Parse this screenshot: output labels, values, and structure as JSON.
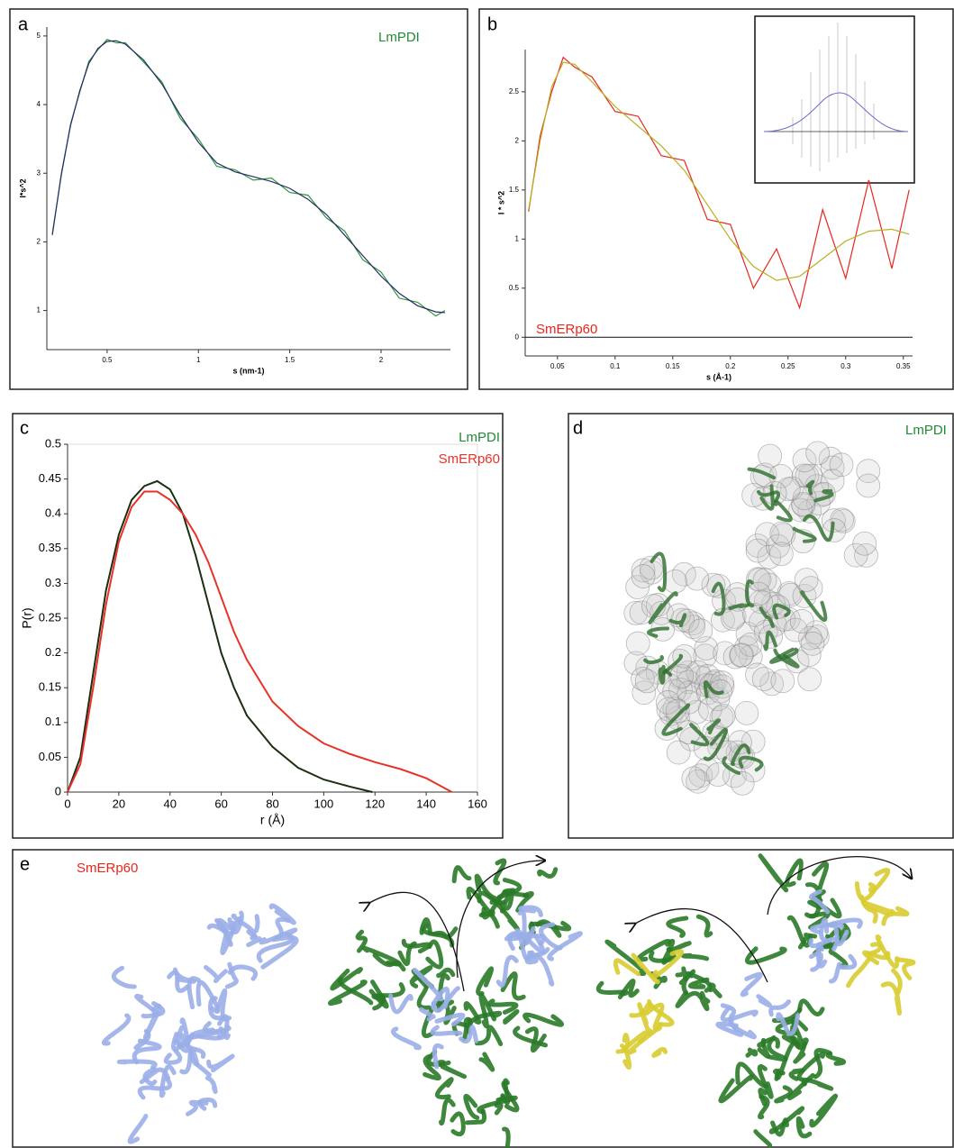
{
  "chart_data": [
    {
      "type": "line",
      "panel": "a",
      "xlabel": "s (nm-1)",
      "ylabel": "I*s^2",
      "annotation": {
        "text": "LmPDI",
        "color": "#238a35"
      },
      "x": [
        0.2,
        0.25,
        0.3,
        0.35,
        0.4,
        0.45,
        0.5,
        0.55,
        0.6,
        0.7,
        0.8,
        0.9,
        1.0,
        1.1,
        1.2,
        1.3,
        1.4,
        1.5,
        1.6,
        1.7,
        1.8,
        1.9,
        2.0,
        2.1,
        2.2,
        2.3,
        2.35
      ],
      "series": [
        {
          "color": "#2a9a3a",
          "values": [
            2.12,
            2.98,
            3.72,
            4.18,
            4.63,
            4.8,
            4.95,
            4.9,
            4.9,
            4.62,
            4.33,
            3.8,
            3.5,
            3.1,
            3.05,
            2.9,
            2.93,
            2.72,
            2.68,
            2.35,
            2.16,
            1.74,
            1.56,
            1.18,
            1.12,
            0.92,
            1.0
          ]
        },
        {
          "color": "#2a2a6a",
          "values": [
            2.1,
            3.0,
            3.7,
            4.2,
            4.6,
            4.82,
            4.92,
            4.93,
            4.88,
            4.65,
            4.3,
            3.85,
            3.45,
            3.15,
            3.02,
            2.95,
            2.88,
            2.78,
            2.62,
            2.4,
            2.1,
            1.8,
            1.5,
            1.25,
            1.07,
            0.98,
            0.97
          ]
        }
      ],
      "xlim": [
        0.17,
        2.38
      ],
      "ylim": [
        0.43,
        5.13
      ],
      "xticks": [
        0.5,
        1,
        1.5,
        2
      ],
      "yticks": [
        1,
        2,
        3,
        4,
        5
      ]
    },
    {
      "type": "line",
      "panel": "b",
      "xlabel": "s (Å-1)",
      "ylabel": "I * s^2",
      "annotation": {
        "text": "SmERp60",
        "color": "#e8261c"
      },
      "x": [
        0.025,
        0.035,
        0.045,
        0.055,
        0.065,
        0.08,
        0.1,
        0.12,
        0.14,
        0.16,
        0.18,
        0.2,
        0.22,
        0.24,
        0.26,
        0.28,
        0.3,
        0.32,
        0.34,
        0.355
      ],
      "series": [
        {
          "color": "#e8261c",
          "values": [
            1.28,
            2.05,
            2.5,
            2.85,
            2.75,
            2.65,
            2.3,
            2.25,
            1.85,
            1.8,
            1.2,
            1.15,
            0.5,
            0.9,
            0.3,
            1.3,
            0.6,
            1.6,
            0.7,
            1.5
          ]
        },
        {
          "color": "#b8b020",
          "values": [
            1.3,
            2.0,
            2.55,
            2.8,
            2.78,
            2.6,
            2.35,
            2.15,
            1.95,
            1.7,
            1.35,
            1.0,
            0.72,
            0.58,
            0.62,
            0.8,
            0.98,
            1.08,
            1.1,
            1.05
          ]
        }
      ],
      "xlim": [
        0.022,
        0.358
      ],
      "ylim": [
        -0.19,
        2.93
      ],
      "xticks": [
        0.05,
        0.1,
        0.15,
        0.2,
        0.25,
        0.3,
        0.35
      ],
      "yticks": [
        0,
        0.5,
        1,
        1.5,
        2,
        2.5
      ]
    },
    {
      "type": "line",
      "panel": "c",
      "xlabel": "r (Å)",
      "ylabel": "P(r)",
      "series": [
        {
          "name": "LmPDI",
          "color": "#1c2e12",
          "label_color": "#238a35",
          "x": [
            0,
            5,
            10,
            15,
            20,
            25,
            30,
            35,
            40,
            45,
            50,
            55,
            60,
            65,
            70,
            80,
            90,
            100,
            110,
            119
          ],
          "values": [
            0,
            0.05,
            0.17,
            0.29,
            0.37,
            0.42,
            0.44,
            0.447,
            0.435,
            0.4,
            0.34,
            0.27,
            0.2,
            0.15,
            0.11,
            0.065,
            0.035,
            0.018,
            0.008,
            0
          ]
        },
        {
          "name": "SmERp60",
          "color": "#e8322a",
          "label_color": "#e8322a",
          "x": [
            0,
            5,
            10,
            15,
            20,
            25,
            30,
            35,
            40,
            45,
            50,
            55,
            60,
            65,
            70,
            80,
            90,
            100,
            110,
            120,
            130,
            140,
            145,
            150
          ],
          "values": [
            0,
            0.04,
            0.15,
            0.27,
            0.36,
            0.41,
            0.432,
            0.432,
            0.42,
            0.4,
            0.37,
            0.33,
            0.28,
            0.23,
            0.19,
            0.13,
            0.095,
            0.07,
            0.055,
            0.043,
            0.033,
            0.02,
            0.01,
            0
          ]
        }
      ],
      "xlim": [
        0,
        160
      ],
      "ylim": [
        0,
        0.5
      ],
      "xticks": [
        0,
        20,
        40,
        60,
        80,
        100,
        120,
        140,
        160
      ],
      "yticks": [
        0,
        0.05,
        0.1,
        0.15,
        0.2,
        0.25,
        0.3,
        0.35,
        0.4,
        0.45,
        0.5
      ]
    }
  ],
  "panel_d": {
    "letter": "d",
    "label": "LmPDI"
  },
  "panel_e": {
    "letter": "e",
    "label": "SmERp60"
  }
}
